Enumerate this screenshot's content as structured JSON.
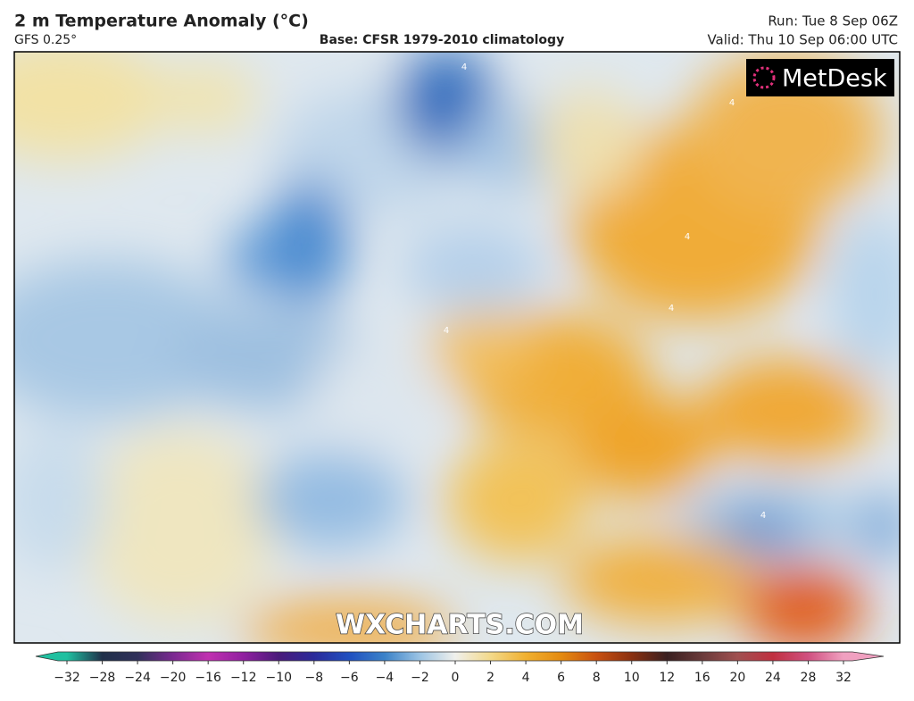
{
  "header": {
    "title": "2 m Temperature Anomaly (°C)",
    "model": "GFS 0.25°",
    "base": "Base: CFSR 1979-2010 climatology",
    "run": "Run: Tue 8 Sep 06Z",
    "valid": "Valid: Thu 10 Sep 06:00 UTC"
  },
  "logo": "MetDesk",
  "watermark": "WXCHARTS.COM",
  "contour_labels": [
    "4",
    "4",
    "4",
    "4",
    "4",
    "4"
  ],
  "colorbar": {
    "ticks": [
      {
        "value": -32,
        "label": "−32"
      },
      {
        "value": -28,
        "label": "−28"
      },
      {
        "value": -24,
        "label": "−24"
      },
      {
        "value": -20,
        "label": "−20"
      },
      {
        "value": -16,
        "label": "−16"
      },
      {
        "value": -12,
        "label": "−12"
      },
      {
        "value": -10,
        "label": "−10"
      },
      {
        "value": -8,
        "label": "−8"
      },
      {
        "value": -6,
        "label": "−6"
      },
      {
        "value": -4,
        "label": "−4"
      },
      {
        "value": -2,
        "label": "−2"
      },
      0,
      2,
      4,
      6,
      8,
      10,
      12,
      16,
      20,
      24,
      28,
      32
    ],
    "colors": [
      "#20c0a0",
      "#20304a",
      "#30305a",
      "#7a2a90",
      "#c030b0",
      "#9020a0",
      "#4a1a7a",
      "#2a2a9a",
      "#2050c0",
      "#3b82c8",
      "#9cc4e4",
      "#f0f0ec",
      "#f3d98a",
      "#f0b030",
      "#e48a10",
      "#c85010",
      "#8a3010",
      "#3a2020",
      "#6a3a3a",
      "#a05050",
      "#c03040",
      "#d05080",
      "#f0a0c0"
    ]
  }
}
